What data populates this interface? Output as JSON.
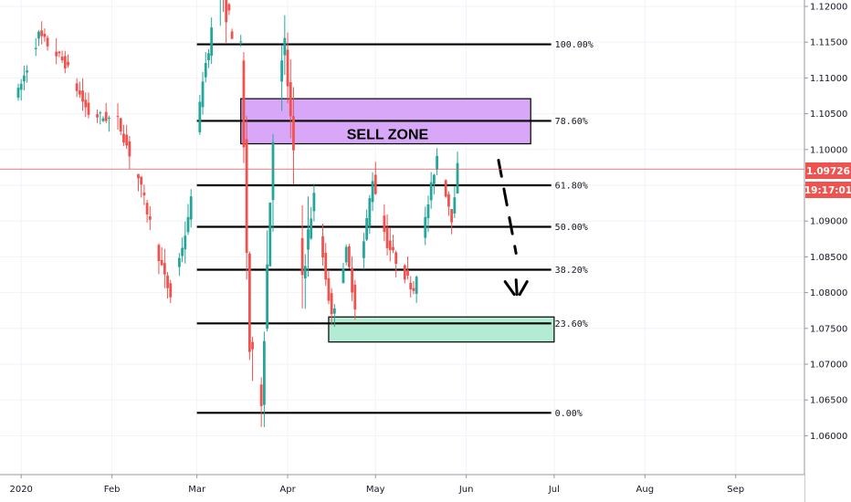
{
  "chart_data": {
    "type": "candlestick",
    "x_labels": [
      "2020",
      "Feb",
      "Mar",
      "Apr",
      "May",
      "Jun",
      "Jul",
      "Aug",
      "Sep"
    ],
    "y_ticks": [
      "1.12000",
      "1.11500",
      "1.11000",
      "1.10500",
      "1.10000",
      "1.09500",
      "1.09000",
      "1.08500",
      "1.08000",
      "1.07500",
      "1.07000",
      "1.06500",
      "1.06000"
    ],
    "ylim": [
      1.0555,
      1.1215
    ],
    "current_price": {
      "value": 1.09726,
      "label": "1.09726",
      "countdown": "19:17:01"
    },
    "fib_levels": [
      {
        "label": "100.00%",
        "price": 1.1147
      },
      {
        "label": "78.60%",
        "price": 1.104
      },
      {
        "label": "61.80%",
        "price": 1.095
      },
      {
        "label": "50.00%",
        "price": 1.0892
      },
      {
        "label": "38.20%",
        "price": 1.0832
      },
      {
        "label": "23.60%",
        "price": 1.0757
      },
      {
        "label": "0.00%",
        "price": 1.0632
      }
    ],
    "zones": [
      {
        "label": "SELL ZONE",
        "type": "sell",
        "from_date": "2020-03-16",
        "to_date": "2020-06-23",
        "high": 1.1071,
        "low": 1.1008,
        "fill": "#d9a7f7",
        "stroke": "#000000"
      },
      {
        "label": "",
        "type": "buy",
        "from_date": "2020-04-15",
        "to_date": "2020-07-01",
        "high": 1.0766,
        "low": 1.0731,
        "fill": "#b3ebd4",
        "stroke": "#000000"
      }
    ],
    "projection": {
      "style": "dashed",
      "points": [
        {
          "date": "2020-06-12",
          "price": 1.0985
        },
        {
          "date": "2020-06-18",
          "price": 1.0855
        }
      ],
      "arrowhead_at": {
        "date": "2020-06-18",
        "price": 1.08
      }
    },
    "colors": {
      "up": "#26a69a",
      "down": "#ef5350",
      "price_line": "#ef5350",
      "badge": "#ef5350",
      "fib_line": "#000000",
      "grid": "#f0f3fa",
      "axis_text": "#131722"
    },
    "candles": []
  }
}
